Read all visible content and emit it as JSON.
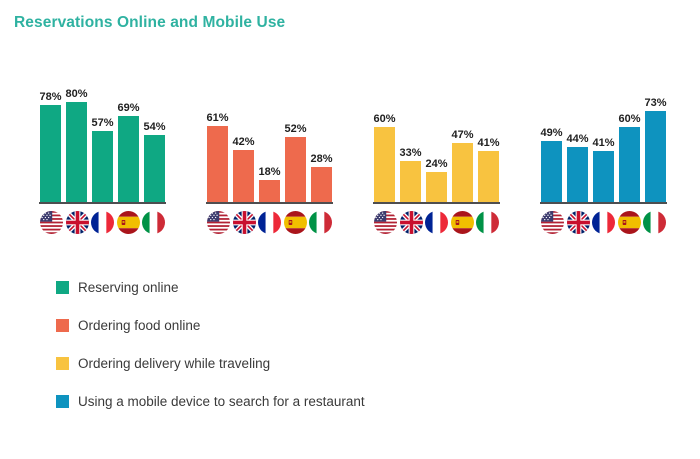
{
  "title": "Reservations Online and Mobile Use",
  "colors": {
    "title": "#2FB2A1",
    "baseline": "#4E4E50",
    "value_label": "#1F1F1F",
    "legend_text": "#3A3A3A",
    "background": "#FFFFFF"
  },
  "countries": [
    {
      "name": "United States",
      "code": "us"
    },
    {
      "name": "United Kingdom",
      "code": "gb"
    },
    {
      "name": "France",
      "code": "fr"
    },
    {
      "name": "Spain",
      "code": "es"
    },
    {
      "name": "Italy",
      "code": "it"
    }
  ],
  "chart_data": {
    "type": "bar",
    "title": "Reservations Online and Mobile Use",
    "unit": "%",
    "ylim": [
      0,
      100
    ],
    "grid": false,
    "value_labels": "above-bars",
    "legend_position": "bottom-left",
    "categories": [
      "United States",
      "United Kingdom",
      "France",
      "Spain",
      "Italy"
    ],
    "series": [
      {
        "name": "Reserving online",
        "color": "#0FA883",
        "values": [
          78,
          80,
          57,
          69,
          54
        ]
      },
      {
        "name": "Ordering food online",
        "color": "#EE6A4D",
        "values": [
          61,
          42,
          18,
          52,
          28
        ]
      },
      {
        "name": "Ordering delivery while traveling",
        "color": "#F8C340",
        "values": [
          60,
          33,
          24,
          47,
          41
        ]
      },
      {
        "name": "Using a mobile device to search for a restaurant",
        "color": "#0E93BF",
        "values": [
          49,
          44,
          41,
          60,
          73
        ]
      }
    ]
  }
}
